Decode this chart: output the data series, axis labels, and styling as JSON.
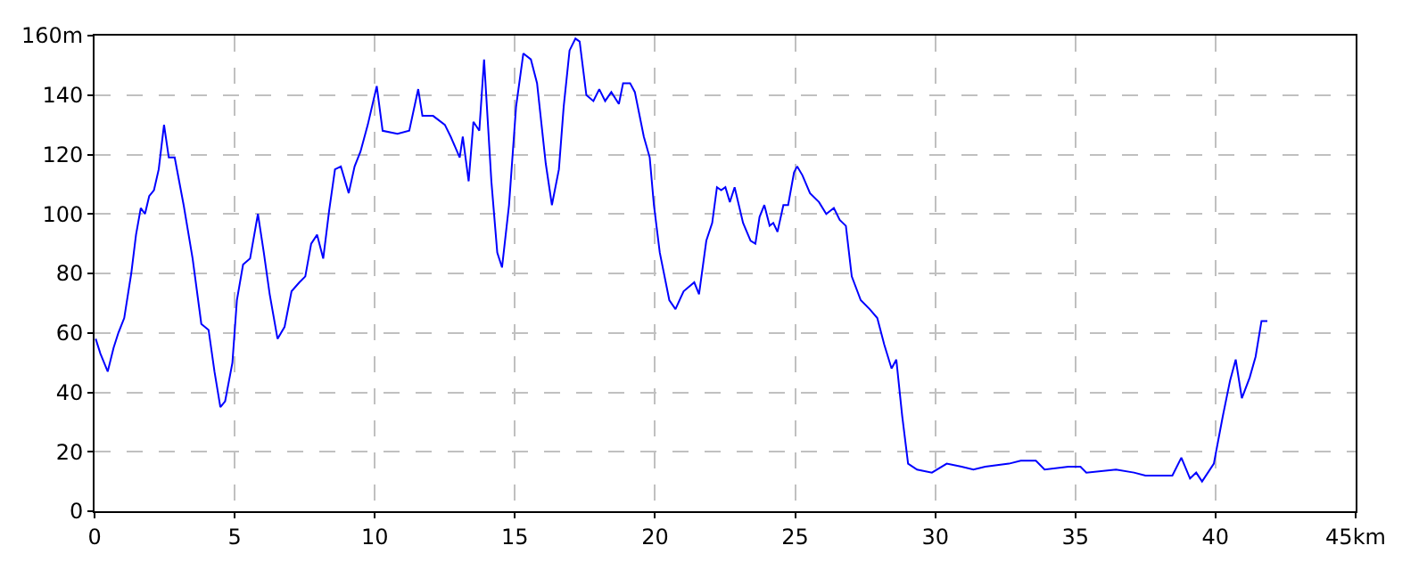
{
  "chart_data": {
    "type": "line",
    "x": [
      0.04,
      0.21,
      0.47,
      0.68,
      0.85,
      1.06,
      1.31,
      1.48,
      1.65,
      1.8,
      1.95,
      2.12,
      2.29,
      2.48,
      2.65,
      2.86,
      3.18,
      3.5,
      3.81,
      4.07,
      4.28,
      4.49,
      4.66,
      4.92,
      5.08,
      5.3,
      5.55,
      5.83,
      6.04,
      6.25,
      6.53,
      6.78,
      7.03,
      7.31,
      7.52,
      7.73,
      7.94,
      8.16,
      8.37,
      8.58,
      8.79,
      9.07,
      9.28,
      9.49,
      9.75,
      10.07,
      10.28,
      10.81,
      11.23,
      11.55,
      11.7,
      12.08,
      12.5,
      12.71,
      13.03,
      13.14,
      13.35,
      13.52,
      13.73,
      13.9,
      14.16,
      14.37,
      14.54,
      14.79,
      15.04,
      15.3,
      15.57,
      15.79,
      16.1,
      16.32,
      16.57,
      16.74,
      16.95,
      17.16,
      17.31,
      17.55,
      17.8,
      18.01,
      18.22,
      18.44,
      18.71,
      18.86,
      19.11,
      19.28,
      19.6,
      19.81,
      19.96,
      20.17,
      20.51,
      20.73,
      21.02,
      21.4,
      21.57,
      21.83,
      22.04,
      22.21,
      22.36,
      22.51,
      22.67,
      22.84,
      23.14,
      23.41,
      23.58,
      23.73,
      23.9,
      24.09,
      24.22,
      24.37,
      24.58,
      24.75,
      24.96,
      25.07,
      25.26,
      25.53,
      25.85,
      26.11,
      26.38,
      26.59,
      26.81,
      27.02,
      27.34,
      27.66,
      27.93,
      28.18,
      28.44,
      28.61,
      28.82,
      29.03,
      29.35,
      29.88,
      30.41,
      30.94,
      31.36,
      31.78,
      32.63,
      33.05,
      33.59,
      33.9,
      34.75,
      35.18,
      35.39,
      36.45,
      37.09,
      37.5,
      38.14,
      38.46,
      38.78,
      39.09,
      39.31,
      39.52,
      39.94,
      40.26,
      40.52,
      40.72,
      40.94,
      41.22,
      41.43,
      41.64,
      41.85
    ],
    "series": [
      {
        "color": "#0000ff",
        "values": [
          58,
          53,
          47,
          55,
          60,
          65,
          80,
          93,
          102,
          100,
          106,
          108,
          115,
          130,
          119,
          119,
          103,
          85,
          63,
          61,
          47,
          35,
          37,
          50,
          71,
          83,
          85,
          100,
          87,
          73,
          58,
          62,
          74,
          77,
          79,
          90,
          93,
          85,
          101,
          115,
          116,
          107,
          116,
          121,
          130,
          143,
          128,
          127,
          128,
          142,
          133,
          133,
          130,
          126,
          119,
          126,
          111,
          131,
          128,
          152,
          111,
          87,
          82,
          103,
          136,
          154,
          152,
          144,
          117,
          103,
          115,
          136,
          155,
          159,
          158,
          140,
          138,
          142,
          138,
          141,
          137,
          144,
          144,
          141,
          126,
          119,
          103,
          87,
          71,
          68,
          74,
          77,
          73,
          91,
          97,
          109,
          108,
          109,
          104,
          109,
          97,
          91,
          90,
          99,
          103,
          96,
          97,
          94,
          103,
          103,
          114,
          116,
          113,
          107,
          104,
          100,
          102,
          98,
          96,
          79,
          71,
          68,
          65,
          56,
          48,
          51,
          32,
          16,
          14,
          13,
          16,
          15,
          14,
          15,
          16,
          17,
          17,
          14,
          15,
          15,
          13,
          14,
          13,
          12,
          12,
          12,
          18,
          11,
          13,
          10,
          16,
          32,
          44,
          51,
          38,
          45,
          52,
          64,
          64
        ]
      }
    ],
    "xlim": [
      0,
      45
    ],
    "ylim": [
      0,
      160
    ],
    "xticks": [
      0,
      5,
      10,
      15,
      20,
      25,
      30,
      35,
      40,
      {
        "value": 45,
        "label": "45km"
      }
    ],
    "yticks": [
      0,
      20,
      40,
      60,
      80,
      100,
      120,
      140,
      {
        "value": 160,
        "label": "160m"
      }
    ],
    "grid": true,
    "line_style": "solid",
    "marker": "none"
  }
}
